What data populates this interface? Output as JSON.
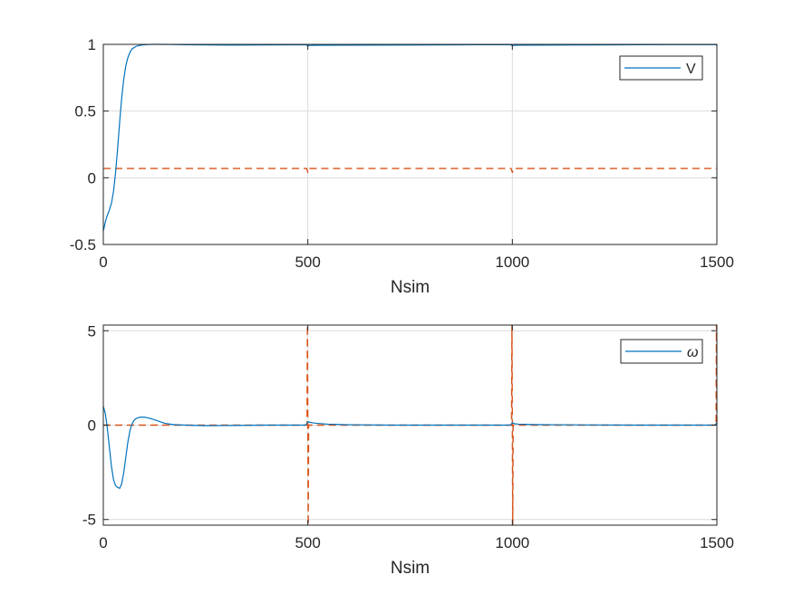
{
  "chart_data": [
    {
      "type": "line",
      "xlabel": "Nsim",
      "ylabel": "",
      "xlim": [
        0,
        1500
      ],
      "ylim": [
        -0.5,
        1
      ],
      "xticks": [
        0,
        500,
        1000,
        1500
      ],
      "xtick_labels": [
        "0",
        "500",
        "1000",
        "1500"
      ],
      "yticks": [
        -0.5,
        0,
        0.5,
        1
      ],
      "ytick_labels": [
        "-0.5",
        "0",
        "0.5",
        "1"
      ],
      "grid": true,
      "legend_position": "top-right",
      "colors": {
        "series": "#0072BD",
        "reference": "#D95319"
      },
      "series": [
        {
          "name": "V",
          "style": "solid",
          "x": [
            0,
            5,
            10,
            15,
            20,
            25,
            30,
            35,
            40,
            45,
            50,
            55,
            60,
            65,
            70,
            80,
            90,
            100,
            110,
            120,
            150,
            200,
            300,
            400,
            495,
            500,
            505,
            520,
            600,
            700,
            800,
            900,
            995,
            1000,
            1005,
            1020,
            1100,
            1200,
            1300,
            1400,
            1495,
            1500
          ],
          "y": [
            -0.4,
            -0.33,
            -0.28,
            -0.24,
            -0.19,
            -0.1,
            0.04,
            0.22,
            0.42,
            0.6,
            0.74,
            0.84,
            0.9,
            0.94,
            0.965,
            0.985,
            0.993,
            0.997,
            0.999,
            1.0,
            1.0,
            0.997,
            0.995,
            0.996,
            0.997,
            0.99,
            0.992,
            0.993,
            0.994,
            0.995,
            0.996,
            0.997,
            0.998,
            0.99,
            0.993,
            0.994,
            0.995,
            0.996,
            0.997,
            0.998,
            0.999,
            0.995
          ]
        },
        {
          "name": "",
          "style": "dashed",
          "x": [
            0,
            497,
            500,
            503,
            997,
            1000,
            1003,
            1500
          ],
          "y": [
            0.07,
            0.07,
            0.04,
            0.07,
            0.07,
            0.04,
            0.07,
            0.07
          ]
        }
      ]
    },
    {
      "type": "line",
      "xlabel": "Nsim",
      "ylabel": "",
      "xlim": [
        0,
        1500
      ],
      "ylim": [
        -5.3,
        5.3
      ],
      "xticks": [
        0,
        500,
        1000,
        1500
      ],
      "xtick_labels": [
        "0",
        "500",
        "1000",
        "1500"
      ],
      "yticks": [
        -5,
        0,
        5
      ],
      "ytick_labels": [
        "-5",
        "0",
        "5"
      ],
      "grid": true,
      "legend_position": "top-right",
      "colors": {
        "series": "#0072BD",
        "reference": "#D95319"
      },
      "series": [
        {
          "name": "ω",
          "style": "solid",
          "x": [
            0,
            5,
            10,
            15,
            20,
            25,
            30,
            35,
            40,
            45,
            50,
            55,
            60,
            65,
            70,
            75,
            80,
            90,
            100,
            110,
            120,
            130,
            140,
            150,
            170,
            200,
            250,
            300,
            400,
            495,
            500,
            505,
            510,
            520,
            550,
            600,
            700,
            800,
            900,
            995,
            1000,
            1005,
            1015,
            1050,
            1100,
            1200,
            1300,
            1400,
            1495,
            1500
          ],
          "y": [
            1.0,
            0.6,
            -0.2,
            -1.2,
            -2.2,
            -2.9,
            -3.2,
            -3.3,
            -3.35,
            -3.1,
            -2.5,
            -1.7,
            -0.9,
            -0.3,
            0.05,
            0.25,
            0.35,
            0.42,
            0.42,
            0.38,
            0.32,
            0.25,
            0.17,
            0.1,
            0.03,
            0.0,
            -0.03,
            -0.02,
            0.0,
            0.0,
            0.18,
            0.15,
            0.13,
            0.1,
            0.05,
            0.02,
            0.0,
            0.0,
            0.0,
            0.0,
            0.12,
            0.08,
            0.05,
            0.03,
            0.02,
            0.01,
            0.0,
            0.0,
            0.0,
            0.12
          ]
        },
        {
          "name": "",
          "style": "dashed",
          "x": [
            0,
            498,
            499,
            500,
            501,
            502,
            998,
            999,
            1000,
            1001,
            1002,
            1498,
            1499,
            1500
          ],
          "y": [
            0,
            0,
            5.3,
            0,
            -5.3,
            0,
            0,
            5.3,
            0,
            -5.3,
            0,
            0,
            5.3,
            0
          ]
        }
      ]
    }
  ]
}
